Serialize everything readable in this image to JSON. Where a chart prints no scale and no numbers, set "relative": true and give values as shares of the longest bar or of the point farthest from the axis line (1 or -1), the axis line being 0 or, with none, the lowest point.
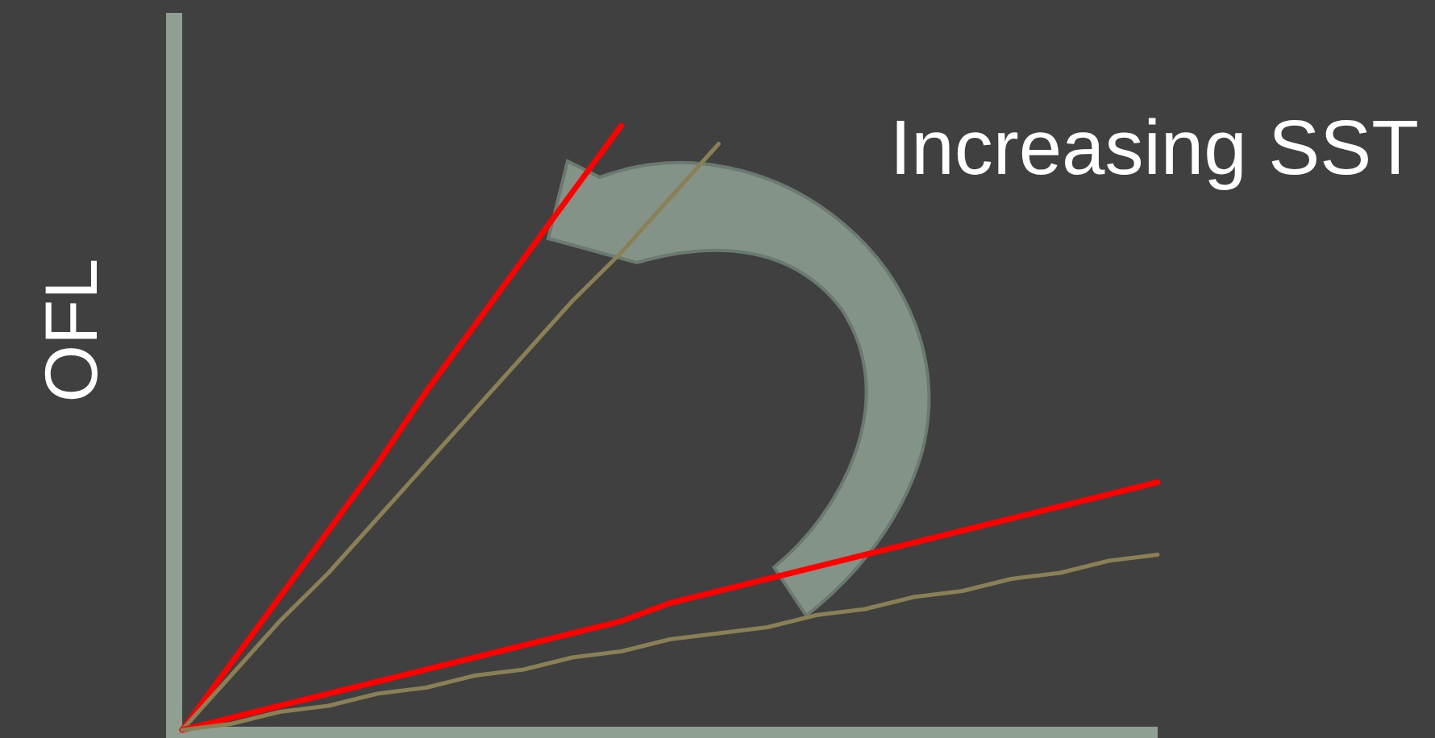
{
  "chart_data": {
    "type": "line",
    "relative": true,
    "ylabel": "OFL",
    "annotations": [
      "Increasing SST"
    ],
    "line_style": "solid",
    "categories": [
      null,
      null,
      null,
      null,
      null,
      null,
      null,
      null,
      null,
      null,
      null,
      null,
      null,
      null,
      null,
      null,
      null,
      null,
      null,
      null,
      null
    ],
    "series": [
      {
        "color": "#ff0000",
        "values": [
          0,
          0.11,
          0.22,
          0.33,
          0.44,
          0.56,
          0.67,
          0.78,
          0.89,
          1,
          null,
          null,
          null,
          null,
          null,
          null,
          null,
          null,
          null,
          null,
          null
        ]
      },
      {
        "color": "#8b8055",
        "values": [
          0,
          0.09,
          0.18,
          0.26,
          0.35,
          0.44,
          0.53,
          0.62,
          0.71,
          0.79,
          0.88,
          0.97,
          null,
          null,
          null,
          null,
          null,
          null,
          null,
          null,
          null
        ]
      },
      {
        "color": "#ff0000",
        "values": [
          0,
          0.02,
          0.04,
          0.06,
          0.08,
          0.1,
          0.12,
          0.14,
          0.16,
          0.18,
          0.21,
          0.23,
          0.25,
          0.27,
          0.29,
          0.31,
          0.33,
          0.35,
          0.37,
          0.39,
          0.41
        ]
      },
      {
        "color": "#8b8055",
        "values": [
          0,
          0.01,
          0.03,
          0.04,
          0.06,
          0.07,
          0.09,
          0.1,
          0.12,
          0.13,
          0.15,
          0.16,
          0.17,
          0.19,
          0.2,
          0.22,
          0.23,
          0.25,
          0.26,
          0.28,
          0.29
        ]
      }
    ]
  }
}
